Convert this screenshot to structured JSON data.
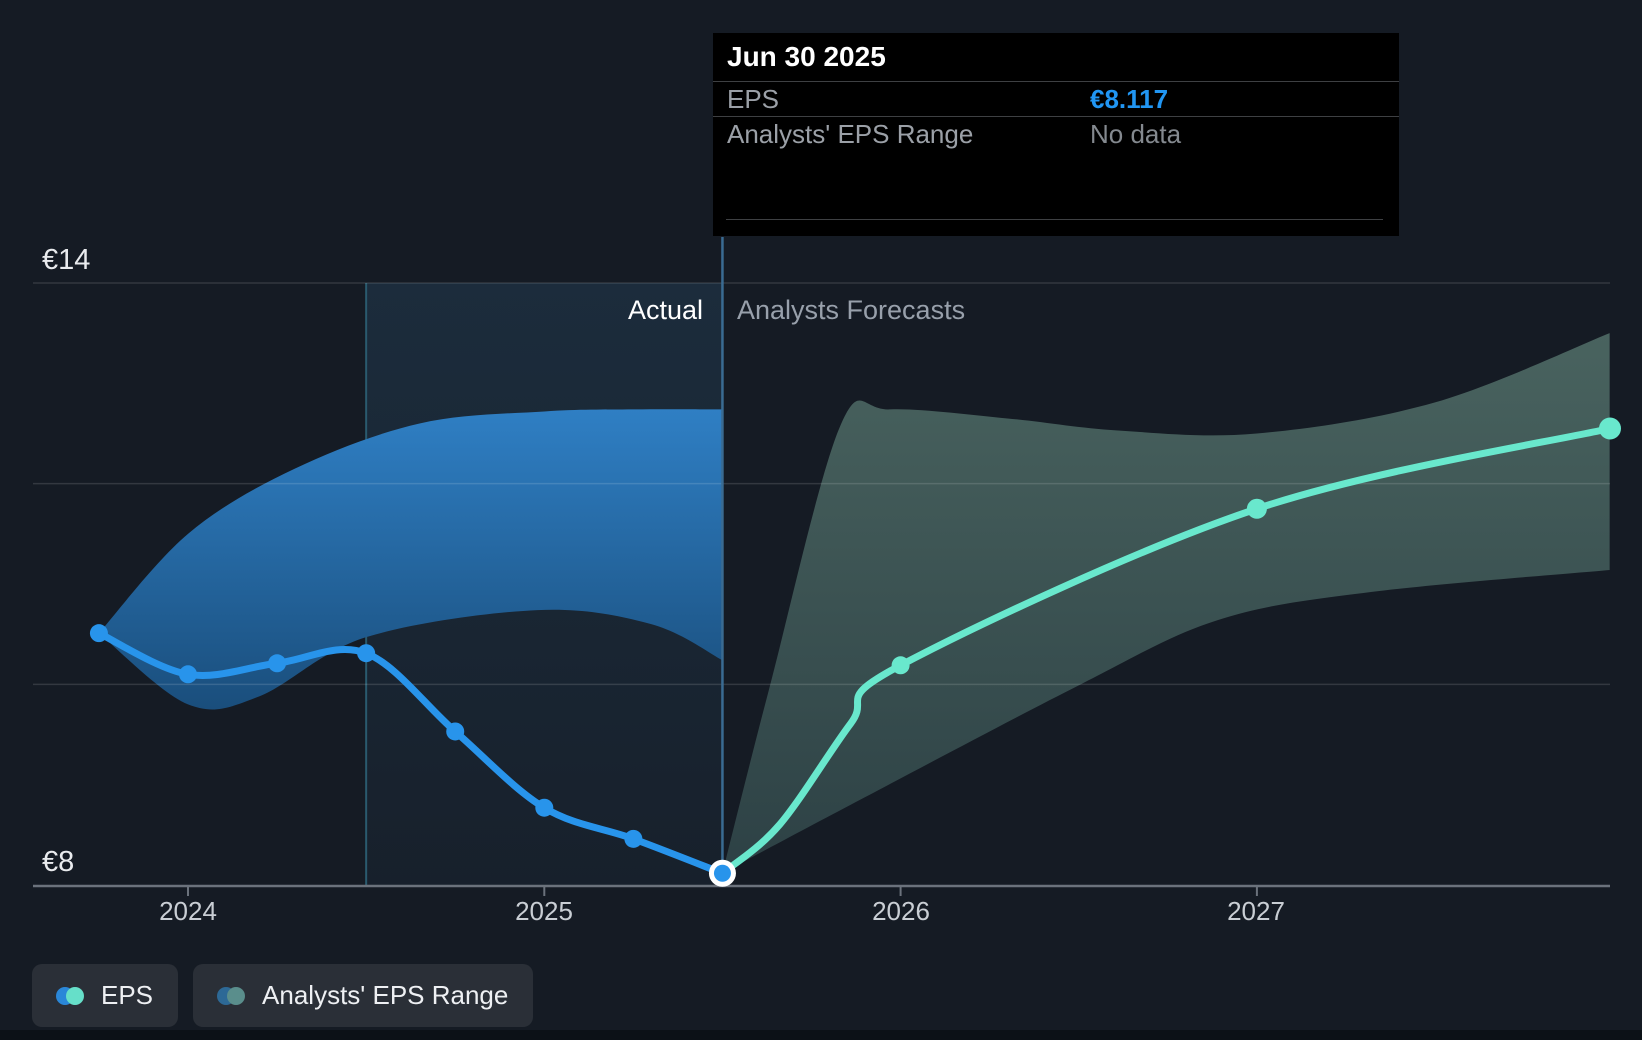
{
  "tooltip": {
    "title": "Jun 30 2025",
    "rows": [
      {
        "label": "EPS",
        "value": "€8.117"
      },
      {
        "label": "Analysts' EPS Range",
        "value": "No data"
      }
    ]
  },
  "axis": {
    "y_top_label": "€14",
    "y_bottom_label": "€8",
    "x_labels": [
      "2024",
      "2025",
      "2026",
      "2027"
    ]
  },
  "annotations": {
    "actual": "Actual",
    "forecast": "Analysts Forecasts"
  },
  "legend": [
    {
      "label": "EPS"
    },
    {
      "label": "Analysts' EPS Range"
    }
  ],
  "colors": {
    "accent_blue": "#2196f3",
    "line_blue": "#2894eb",
    "line_teal": "#69e8cd",
    "band_blue_top": "#2f7fc4",
    "band_blue_bottom": "#1a4e7c",
    "band_green_top": "#49635f",
    "band_green_bottom": "#2d4145",
    "background": "#151b24",
    "grid": "rgba(255,255,255,0.13)",
    "axis": "#6b727c",
    "divider": "#3a6b92",
    "highlight_edge": "#2a5a6e",
    "tooltip_bg": "#000000",
    "legend_chip_blue": "#2a87d8",
    "legend_chip_teal": "#66dfc9",
    "legend_chip_blue_muted": "#2d6996",
    "legend_chip_teal_muted": "#5a8e8c",
    "text_primary": "#ffffff",
    "text_secondary": "#98a0ab"
  },
  "chart_data": {
    "type": "line",
    "unit": "EUR per share (EPS)",
    "y_axis": {
      "top_value": 14,
      "bottom_value": 8,
      "top_label": "€14",
      "bottom_label": "€8",
      "gridline_values": [
        14,
        12,
        10
      ]
    },
    "x_axis": {
      "tick_labels": [
        "2024",
        "2025",
        "2026",
        "2027"
      ],
      "tick_years": [
        2024,
        2025,
        2026,
        2027
      ]
    },
    "divider_year": 2025.5,
    "sections": {
      "left": "Actual",
      "right": "Analysts Forecasts"
    },
    "series": [
      {
        "name": "EPS",
        "kind": "actual",
        "points": [
          {
            "x": 2023.75,
            "value": 10.51
          },
          {
            "x": 2024.0,
            "value": 10.1
          },
          {
            "x": 2024.25,
            "value": 10.21
          },
          {
            "x": 2024.5,
            "value": 10.31
          },
          {
            "x": 2024.75,
            "value": 9.53
          },
          {
            "x": 2025.0,
            "value": 8.77
          },
          {
            "x": 2025.25,
            "value": 8.46
          },
          {
            "x": 2025.5,
            "value": 8.117,
            "date": "Jun 30 2025",
            "highlighted": true
          }
        ]
      },
      {
        "name": "EPS analysts forecast",
        "kind": "forecast",
        "points": [
          {
            "x": 2025.5,
            "value": 8.117,
            "dot": false
          },
          {
            "x": 2025.66,
            "value": 8.6,
            "dot": false
          },
          {
            "x": 2025.86,
            "value": 9.61,
            "dot": false
          },
          {
            "x": 2026.0,
            "value": 10.19
          },
          {
            "x": 2027.0,
            "value": 11.75,
            "r": 10
          },
          {
            "x": 2028.0,
            "value": 12.55,
            "r": 11
          }
        ]
      }
    ],
    "bands": [
      {
        "name": "EPS range (actual period)",
        "fill": "blue",
        "top": [
          [
            2023.75,
            10.51
          ],
          [
            2024.0,
            11.5
          ],
          [
            2024.3,
            12.15
          ],
          [
            2024.65,
            12.6
          ],
          [
            2025.0,
            12.72
          ],
          [
            2025.25,
            12.74
          ],
          [
            2025.5,
            12.74
          ]
        ],
        "bottom": [
          [
            2023.75,
            10.51
          ],
          [
            2024.0,
            9.8
          ],
          [
            2024.2,
            9.88
          ],
          [
            2024.5,
            10.47
          ],
          [
            2024.98,
            10.74
          ],
          [
            2025.3,
            10.6
          ],
          [
            2025.5,
            10.24
          ]
        ]
      },
      {
        "name": "Analysts' EPS Range (forecast)",
        "fill": "green",
        "top": [
          [
            2025.5,
            8.12
          ],
          [
            2025.63,
            9.94
          ],
          [
            2025.83,
            12.57
          ],
          [
            2025.97,
            12.74
          ],
          [
            2026.3,
            12.65
          ],
          [
            2026.61,
            12.53
          ],
          [
            2027.0,
            12.5
          ],
          [
            2027.5,
            12.81
          ],
          [
            2027.99,
            13.5
          ]
        ],
        "bottom": [
          [
            2025.5,
            8.12
          ],
          [
            2025.86,
            8.8
          ],
          [
            2026.5,
            9.99
          ],
          [
            2026.89,
            10.64
          ],
          [
            2027.32,
            10.92
          ],
          [
            2027.99,
            11.14
          ]
        ]
      }
    ]
  }
}
